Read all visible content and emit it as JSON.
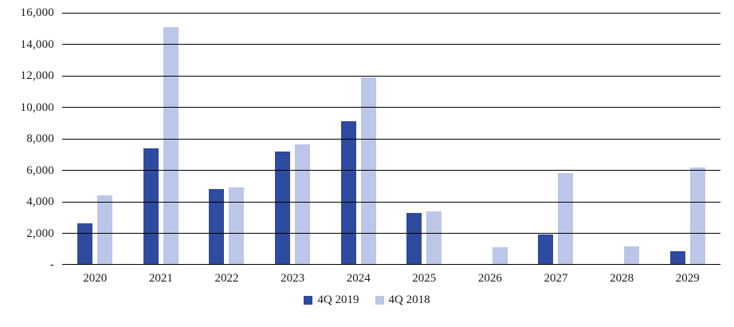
{
  "chart_data": {
    "type": "bar",
    "title": "",
    "xlabel": "",
    "ylabel": "",
    "categories": [
      "2020",
      "2021",
      "2022",
      "2023",
      "2024",
      "2025",
      "2026",
      "2027",
      "2028",
      "2029"
    ],
    "series": [
      {
        "name": "4Q 2019",
        "color": "#2E4B9F",
        "values": [
          2650,
          7400,
          4800,
          7200,
          9100,
          3300,
          0,
          1900,
          0,
          850
        ]
      },
      {
        "name": "4Q 2018",
        "color": "#BCC6E8",
        "values": [
          4400,
          15100,
          4900,
          7650,
          11900,
          3400,
          1100,
          5800,
          1150,
          6200
        ]
      }
    ],
    "ylim": [
      0,
      16000
    ],
    "ytick_step": 2000,
    "ytick_labels_bottom_to_top": [
      "-",
      "2,000",
      "4,000",
      "6,000",
      "8,000",
      "10,000",
      "12,000",
      "14,000",
      "16,000"
    ],
    "grid": true,
    "gridline_color": "#000000",
    "background_color": "#ffffff",
    "legend_position": "bottom"
  }
}
